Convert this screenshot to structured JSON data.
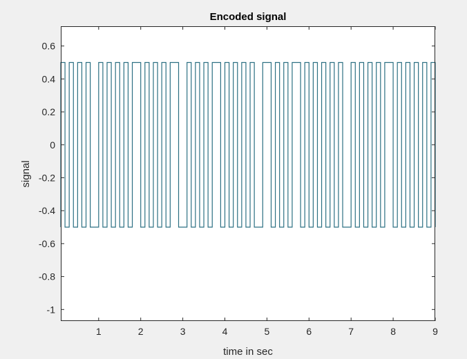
{
  "chart_data": {
    "type": "line",
    "title": "Encoded signal",
    "xlabel": "time in sec",
    "ylabel": "signal",
    "xlim": [
      0.1,
      9.0
    ],
    "ylim": [
      -1.07,
      0.72
    ],
    "xticks": [
      1,
      2,
      3,
      4,
      5,
      6,
      7,
      8,
      9
    ],
    "xtick_labels": [
      "1",
      "2",
      "3",
      "4",
      "5",
      "6",
      "7",
      "8",
      "9"
    ],
    "yticks": [
      0.6,
      0.4,
      0.2,
      0,
      -0.2,
      -0.4,
      -0.6,
      -0.8,
      -1
    ],
    "ytick_labels": [
      "0.6",
      "0.4",
      "0.2",
      "0",
      "-0.2",
      "-0.4",
      "-0.6",
      "-0.8",
      "-1"
    ],
    "grid": false,
    "line_color": "#2b6f82",
    "series": [
      {
        "step": "post",
        "x": [
          0.1,
          0.1,
          0.2,
          0.3,
          0.4,
          0.5,
          0.6,
          0.7,
          0.8,
          0.9,
          1.0,
          1.1,
          1.2,
          1.3,
          1.4,
          1.5,
          1.6,
          1.7,
          1.8,
          1.9,
          2.0,
          2.1,
          2.2,
          2.3,
          2.4,
          2.5,
          2.6,
          2.7,
          2.8,
          2.9,
          3.0,
          3.1,
          3.2,
          3.3,
          3.4,
          3.5,
          3.6,
          3.7,
          3.8,
          3.9,
          4.0,
          4.1,
          4.2,
          4.3,
          4.4,
          4.5,
          4.6,
          4.7,
          4.8,
          4.9,
          5.0,
          5.1,
          5.2,
          5.3,
          5.4,
          5.5,
          5.6,
          5.7,
          5.8,
          5.9,
          6.0,
          6.1,
          6.2,
          6.3,
          6.4,
          6.5,
          6.6,
          6.7,
          6.8,
          6.9,
          7.0,
          7.1,
          7.2,
          7.3,
          7.4,
          7.5,
          7.6,
          7.7,
          7.8,
          7.9,
          8.0,
          8.1,
          8.2,
          8.3,
          8.4,
          8.5,
          8.6,
          8.7,
          8.8,
          8.9,
          9.0
        ],
        "y": [
          -0.5,
          0.5,
          -0.5,
          0.5,
          -0.5,
          0.5,
          -0.5,
          0.5,
          -0.5,
          -0.5,
          0.5,
          -0.5,
          0.5,
          -0.5,
          0.5,
          -0.5,
          0.5,
          -0.5,
          0.5,
          0.5,
          -0.5,
          0.5,
          -0.5,
          0.5,
          -0.5,
          0.5,
          -0.5,
          0.5,
          0.5,
          -0.5,
          -0.5,
          0.5,
          -0.5,
          0.5,
          -0.5,
          0.5,
          -0.5,
          0.5,
          0.5,
          -0.5,
          0.5,
          -0.5,
          0.5,
          -0.5,
          0.5,
          -0.5,
          0.5,
          -0.5,
          -0.5,
          0.5,
          0.5,
          -0.5,
          0.5,
          -0.5,
          0.5,
          -0.5,
          0.5,
          0.5,
          -0.5,
          0.5,
          -0.5,
          0.5,
          -0.5,
          0.5,
          -0.5,
          0.5,
          -0.5,
          0.5,
          -0.5,
          -0.5,
          0.5,
          -0.5,
          0.5,
          -0.5,
          0.5,
          -0.5,
          0.5,
          -0.5,
          0.5,
          0.5,
          -0.5,
          0.5,
          -0.5,
          0.5,
          -0.5,
          0.5,
          -0.5,
          0.5,
          -0.5,
          0.5,
          -0.5
        ]
      }
    ]
  }
}
